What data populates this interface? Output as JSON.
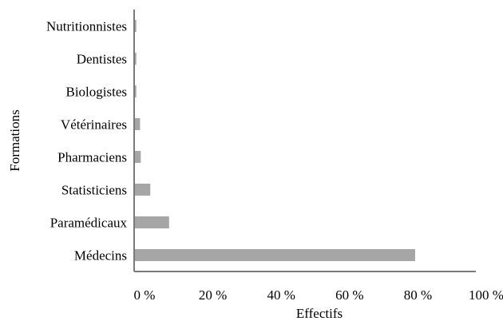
{
  "chart_data": {
    "type": "bar",
    "orientation": "horizontal",
    "categories": [
      "Nutritionnistes",
      "Dentistes",
      "Biologistes",
      "Vétérinaires",
      "Pharmaciens",
      "Statisticiens",
      "Paramédicaux",
      "Médecins"
    ],
    "values": [
      0.4,
      0.4,
      0.4,
      1.5,
      1.7,
      4.5,
      10,
      82
    ],
    "xlabel": "Effectifs",
    "ylabel": "Formations",
    "xlim": [
      0,
      100
    ],
    "xticks": [
      "0 %",
      "20 %",
      "40 %",
      "60 %",
      "80 %",
      "100 %"
    ],
    "grid": false,
    "bar_color": "#a6a6a6",
    "axis_color": "#7a7a7a"
  }
}
